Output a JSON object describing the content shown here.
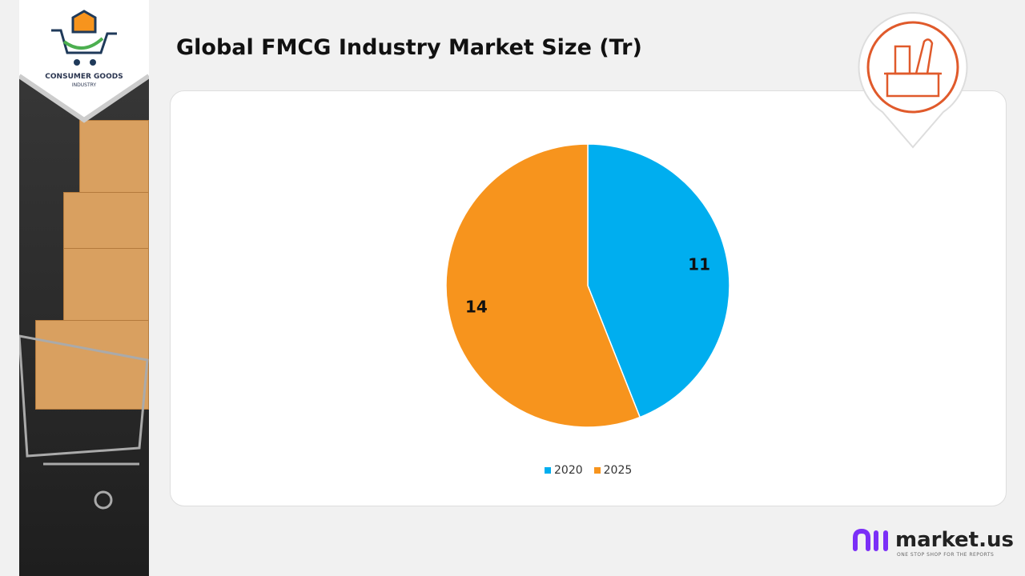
{
  "brand": {
    "line1": "CONSUMER GOODS",
    "line2": "INDUSTRY"
  },
  "title": "Global FMCG Industry Market Size (Tr)",
  "footer": {
    "name": "market.us",
    "tagline": "ONE STOP SHOP FOR THE REPORTS"
  },
  "chart_data": {
    "type": "pie",
    "title": "Global FMCG Industry Market Size (Tr)",
    "categories": [
      "2020",
      "2025"
    ],
    "values": [
      11,
      14
    ],
    "colors": [
      "#00aeef",
      "#f7941d"
    ],
    "legend": "bottom"
  }
}
